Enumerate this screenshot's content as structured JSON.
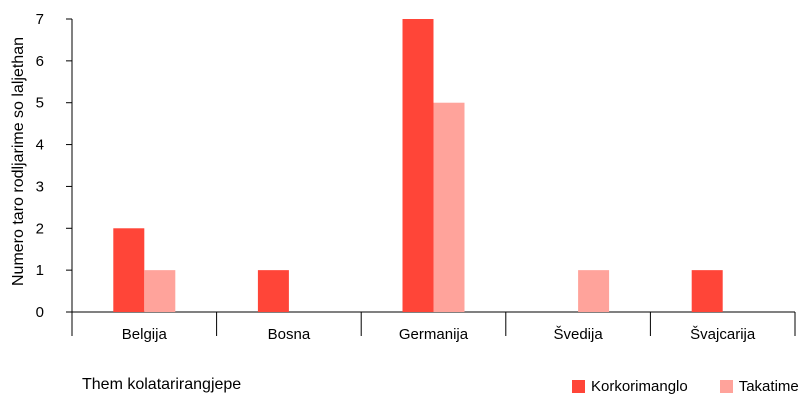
{
  "chart_data": {
    "type": "bar",
    "categories": [
      "Belgija",
      "Bosna",
      "Germanija",
      "Švedija",
      "Švajcarija"
    ],
    "series": [
      {
        "name": "Korkorimanglo",
        "values": [
          2,
          1,
          7,
          0,
          1
        ],
        "color": "#ff4538"
      },
      {
        "name": "Takatime",
        "values": [
          1,
          0,
          5,
          1,
          0
        ],
        "color": "#ffa39b"
      }
    ],
    "xlabel": "Them kolatarirangjepe",
    "ylabel": "Numero taro rodljarime so laljethan",
    "ylim": [
      0,
      7
    ],
    "yticks": [
      0,
      1,
      2,
      3,
      4,
      5,
      6,
      7
    ],
    "grid": false,
    "legend_position": "bottom-right"
  }
}
